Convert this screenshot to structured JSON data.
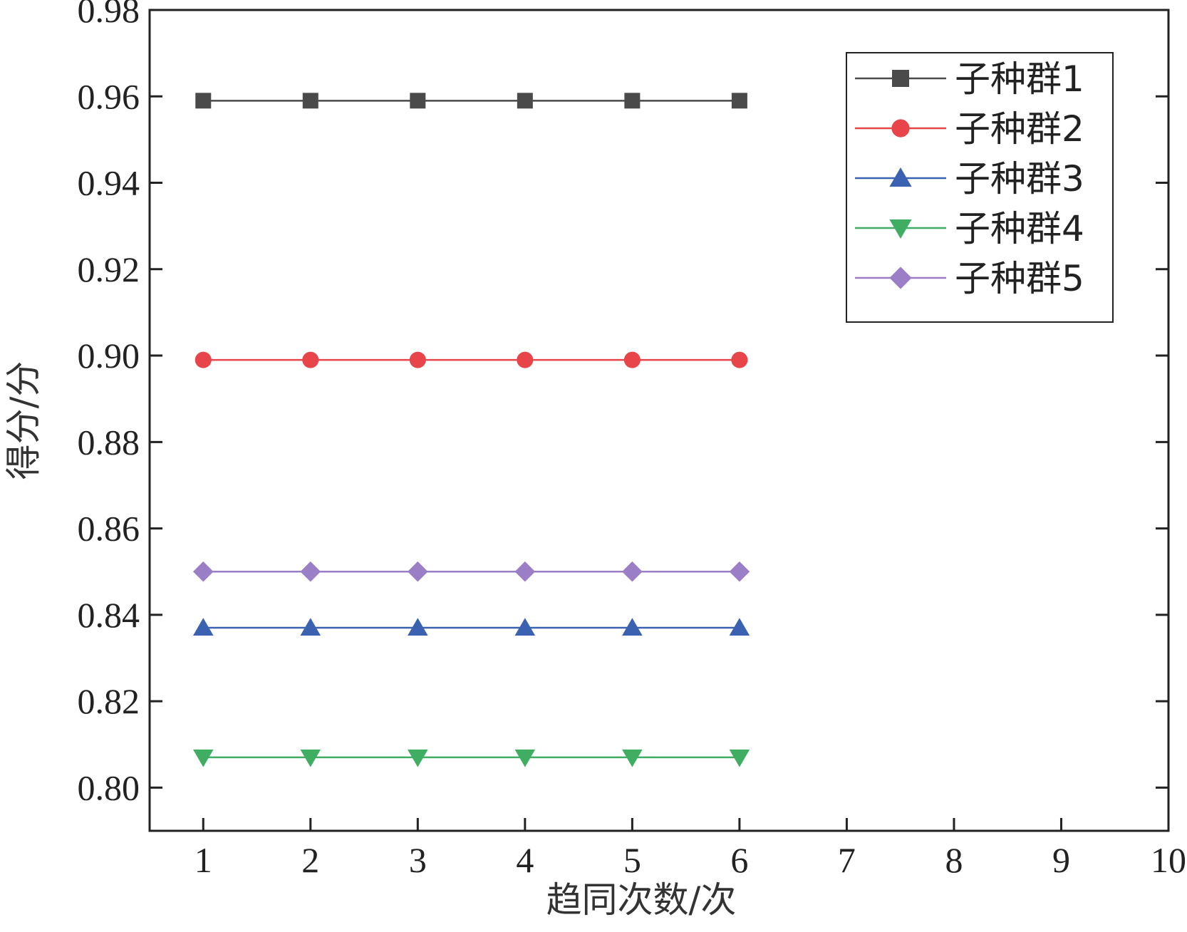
{
  "chart_data": {
    "type": "line",
    "xlabel": "趋同次数/次",
    "ylabel": "得分/分",
    "xlim": [
      0.5,
      10
    ],
    "ylim": [
      0.79,
      0.98
    ],
    "x_ticks": [
      1,
      2,
      3,
      4,
      5,
      6,
      7,
      8,
      9,
      10
    ],
    "y_ticks": [
      0.8,
      0.82,
      0.84,
      0.86,
      0.88,
      0.9,
      0.92,
      0.94,
      0.96,
      0.98
    ],
    "y_tick_labels": [
      "0.80",
      "0.82",
      "0.84",
      "0.86",
      "0.88",
      "0.90",
      "0.92",
      "0.94",
      "0.96",
      "0.98"
    ],
    "x_tick_labels": [
      "1",
      "2",
      "3",
      "4",
      "5",
      "6",
      "7",
      "8",
      "9",
      "10"
    ],
    "x": [
      1,
      2,
      3,
      4,
      5,
      6
    ],
    "grid": false,
    "legend_position": "top-right",
    "series": [
      {
        "name": "子种群1",
        "values": [
          0.959,
          0.959,
          0.959,
          0.959,
          0.959,
          0.959
        ],
        "color": "#4a4a4a",
        "marker": "square"
      },
      {
        "name": "子种群2",
        "values": [
          0.899,
          0.899,
          0.899,
          0.899,
          0.899,
          0.899
        ],
        "color": "#e8454a",
        "marker": "circle"
      },
      {
        "name": "子种群3",
        "values": [
          0.837,
          0.837,
          0.837,
          0.837,
          0.837,
          0.837
        ],
        "color": "#3a62b0",
        "marker": "triangle-up"
      },
      {
        "name": "子种群4",
        "values": [
          0.807,
          0.807,
          0.807,
          0.807,
          0.807,
          0.807
        ],
        "color": "#3fae62",
        "marker": "triangle-down"
      },
      {
        "name": "子种群5",
        "values": [
          0.85,
          0.85,
          0.85,
          0.85,
          0.85,
          0.85
        ],
        "color": "#9b7fc6",
        "marker": "diamond"
      }
    ]
  }
}
